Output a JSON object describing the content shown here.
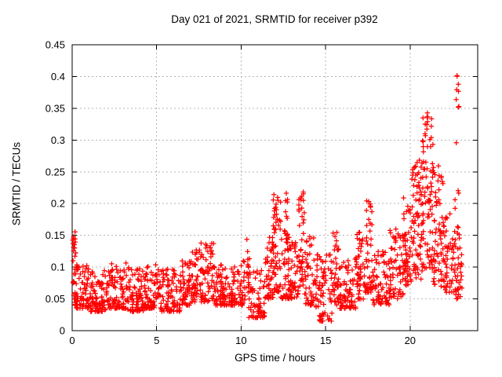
{
  "window": {
    "background": "#ffffff"
  },
  "chart_data": {
    "type": "scatter",
    "title": "Day 021 of 2021, SRMTID for receiver p392",
    "xlabel": "GPS time / hours",
    "ylabel": "SRMTID / TECUs",
    "xlim": [
      0,
      24
    ],
    "ylim": [
      0,
      0.45
    ],
    "xticks": {
      "values": [
        0,
        5,
        10,
        15,
        20
      ],
      "labels": [
        "0",
        "5",
        "10",
        "15",
        "20"
      ]
    },
    "yticks": {
      "values": [
        0,
        0.05,
        0.1,
        0.15,
        0.2,
        0.25,
        0.3,
        0.35,
        0.4,
        0.45
      ],
      "labels": [
        "0",
        "0.05",
        "0.1",
        "0.15",
        "0.2",
        "0.25",
        "0.3",
        "0.35",
        "0.4",
        "0.45"
      ]
    },
    "grid": {
      "enabled": true,
      "style": "dotted",
      "color": "#b4b4b4"
    },
    "border_color": "#000000",
    "marker": {
      "shape": "plus",
      "color": "#ff0000",
      "size": 7
    },
    "legend": null,
    "seed": 20210392,
    "series_note": "dense 30s-cadence scatter; envelope segments [x0,x1,y0,y1,count,low-bias]",
    "segments": [
      {
        "x0": 0.02,
        "x1": 0.25,
        "y0": 0.05,
        "y1": 0.16,
        "n": 28,
        "k": 1.0
      },
      {
        "x0": 0.15,
        "x1": 1.0,
        "y0": 0.035,
        "y1": 0.105,
        "n": 65,
        "k": 1.9
      },
      {
        "x0": 1.0,
        "x1": 2.2,
        "y0": 0.03,
        "y1": 0.095,
        "n": 95,
        "k": 1.8
      },
      {
        "x0": 2.2,
        "x1": 3.2,
        "y0": 0.035,
        "y1": 0.11,
        "n": 80,
        "k": 1.9
      },
      {
        "x0": 3.2,
        "x1": 4.2,
        "y0": 0.03,
        "y1": 0.1,
        "n": 80,
        "k": 1.8
      },
      {
        "x0": 4.2,
        "x1": 5.2,
        "y0": 0.035,
        "y1": 0.105,
        "n": 80,
        "k": 1.9
      },
      {
        "x0": 5.2,
        "x1": 6.4,
        "y0": 0.03,
        "y1": 0.1,
        "n": 90,
        "k": 1.8
      },
      {
        "x0": 6.4,
        "x1": 7.1,
        "y0": 0.04,
        "y1": 0.115,
        "n": 55,
        "k": 1.7
      },
      {
        "x0": 7.1,
        "x1": 8.4,
        "y0": 0.045,
        "y1": 0.14,
        "n": 105,
        "k": 1.5
      },
      {
        "x0": 8.4,
        "x1": 9.4,
        "y0": 0.04,
        "y1": 0.105,
        "n": 75,
        "k": 1.9
      },
      {
        "x0": 9.4,
        "x1": 10.3,
        "y0": 0.04,
        "y1": 0.11,
        "n": 65,
        "k": 1.9
      },
      {
        "x0": 10.3,
        "x1": 10.5,
        "y0": 0.09,
        "y1": 0.148,
        "n": 8,
        "k": 1.0
      },
      {
        "x0": 10.4,
        "x1": 11.4,
        "y0": 0.02,
        "y1": 0.095,
        "n": 70,
        "k": 1.6
      },
      {
        "x0": 11.4,
        "x1": 11.9,
        "y0": 0.05,
        "y1": 0.15,
        "n": 45,
        "k": 1.6
      },
      {
        "x0": 11.9,
        "x1": 12.35,
        "y0": 0.06,
        "y1": 0.215,
        "n": 55,
        "k": 1.4
      },
      {
        "x0": 12.35,
        "x1": 12.9,
        "y0": 0.05,
        "y1": 0.16,
        "n": 45,
        "k": 1.7
      },
      {
        "x0": 12.6,
        "x1": 12.85,
        "y0": 0.12,
        "y1": 0.22,
        "n": 14,
        "k": 1.0
      },
      {
        "x0": 12.9,
        "x1": 13.4,
        "y0": 0.05,
        "y1": 0.14,
        "n": 40,
        "k": 1.7
      },
      {
        "x0": 13.4,
        "x1": 13.75,
        "y0": 0.07,
        "y1": 0.225,
        "n": 40,
        "k": 1.3
      },
      {
        "x0": 13.75,
        "x1": 14.4,
        "y0": 0.04,
        "y1": 0.15,
        "n": 50,
        "k": 1.7
      },
      {
        "x0": 14.4,
        "x1": 15.4,
        "y0": 0.015,
        "y1": 0.12,
        "n": 75,
        "k": 1.6
      },
      {
        "x0": 15.4,
        "x1": 15.8,
        "y0": 0.04,
        "y1": 0.175,
        "n": 35,
        "k": 1.5
      },
      {
        "x0": 15.8,
        "x1": 16.8,
        "y0": 0.035,
        "y1": 0.115,
        "n": 75,
        "k": 1.8
      },
      {
        "x0": 16.8,
        "x1": 17.3,
        "y0": 0.05,
        "y1": 0.155,
        "n": 45,
        "k": 1.5
      },
      {
        "x0": 17.3,
        "x1": 17.75,
        "y0": 0.06,
        "y1": 0.205,
        "n": 45,
        "k": 1.4
      },
      {
        "x0": 17.75,
        "x1": 18.8,
        "y0": 0.04,
        "y1": 0.125,
        "n": 75,
        "k": 1.7
      },
      {
        "x0": 18.8,
        "x1": 19.6,
        "y0": 0.05,
        "y1": 0.16,
        "n": 60,
        "k": 1.6
      },
      {
        "x0": 19.6,
        "x1": 20.1,
        "y0": 0.07,
        "y1": 0.225,
        "n": 55,
        "k": 1.3
      },
      {
        "x0": 20.1,
        "x1": 20.7,
        "y0": 0.08,
        "y1": 0.27,
        "n": 70,
        "k": 1.2
      },
      {
        "x0": 20.7,
        "x1": 21.35,
        "y0": 0.09,
        "y1": 0.345,
        "n": 85,
        "k": 1.2
      },
      {
        "x0": 21.35,
        "x1": 22.0,
        "y0": 0.07,
        "y1": 0.26,
        "n": 65,
        "k": 1.4
      },
      {
        "x0": 22.0,
        "x1": 22.55,
        "y0": 0.06,
        "y1": 0.185,
        "n": 45,
        "k": 1.5
      },
      {
        "x0": 22.55,
        "x1": 22.95,
        "y0": 0.05,
        "y1": 0.165,
        "n": 30,
        "k": 1.4
      },
      {
        "x0": 22.6,
        "x1": 22.95,
        "y0": 0.15,
        "y1": 0.22,
        "n": 6,
        "k": 1.0
      },
      {
        "x0": 22.7,
        "x1": 22.9,
        "y0": 0.22,
        "y1": 0.41,
        "n": 10,
        "k": 0.8
      },
      {
        "x0": 22.95,
        "x1": 23.1,
        "y0": 0.05,
        "y1": 0.13,
        "n": 10,
        "k": 1.2
      }
    ]
  }
}
